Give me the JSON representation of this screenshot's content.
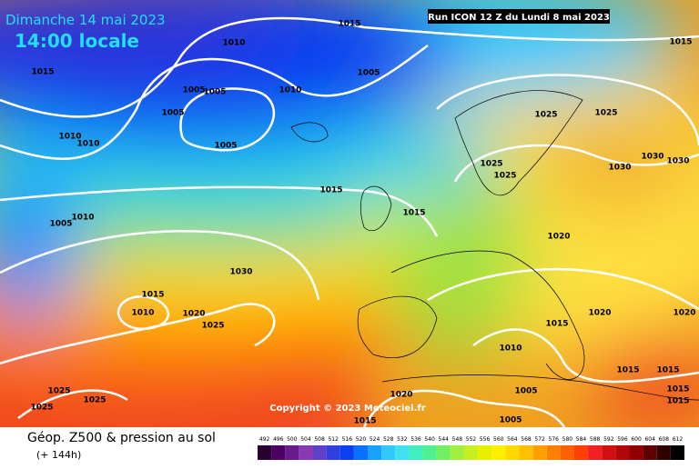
{
  "header": {
    "date": "Dimanche 14 mai 2023",
    "time": "14:00 locale",
    "run": "Run ICON 12 Z du Lundi 8 mai 2023"
  },
  "map": {
    "copyright": "Copyright © 2023 Meteociel.fr",
    "isobar_labels": [
      "1015",
      "1015",
      "1010",
      "1015",
      "1005",
      "1005",
      "1005",
      "1010",
      "1005",
      "1010",
      "1010",
      "1005",
      "1025",
      "1025",
      "1025",
      "1025",
      "1030",
      "1030",
      "1030",
      "1015",
      "1005",
      "1010",
      "1015",
      "1020",
      "1030",
      "1015",
      "1010",
      "1020",
      "1025",
      "1015",
      "1020",
      "1020",
      "1010",
      "1015",
      "1015",
      "1005",
      "1015",
      "1015",
      "1025",
      "1025",
      "1025",
      "1020",
      "1005",
      "1015"
    ]
  },
  "footer": {
    "title": "Géop. Z500 & pression au sol",
    "subtitle": "(+ 144h)"
  },
  "legend": {
    "ticks": [
      492,
      496,
      500,
      504,
      508,
      512,
      516,
      520,
      524,
      528,
      532,
      536,
      540,
      544,
      548,
      552,
      556,
      560,
      564,
      568,
      572,
      576,
      580,
      584,
      588,
      592,
      596,
      600,
      604,
      608,
      612
    ],
    "colors": [
      "#2a0030",
      "#4a0060",
      "#6a1a8a",
      "#8a3ab0",
      "#6040c8",
      "#3040e0",
      "#0a40f0",
      "#0a70ff",
      "#1aa0ff",
      "#30c8ff",
      "#40e0f0",
      "#40f0c0",
      "#50f090",
      "#70f060",
      "#a0f040",
      "#c8f020",
      "#e8f000",
      "#fff000",
      "#ffd800",
      "#ffc000",
      "#ffa000",
      "#ff8000",
      "#ff6000",
      "#ff4000",
      "#f02020",
      "#d01010",
      "#b00808",
      "#900000",
      "#600000",
      "#300000",
      "#000000"
    ]
  }
}
